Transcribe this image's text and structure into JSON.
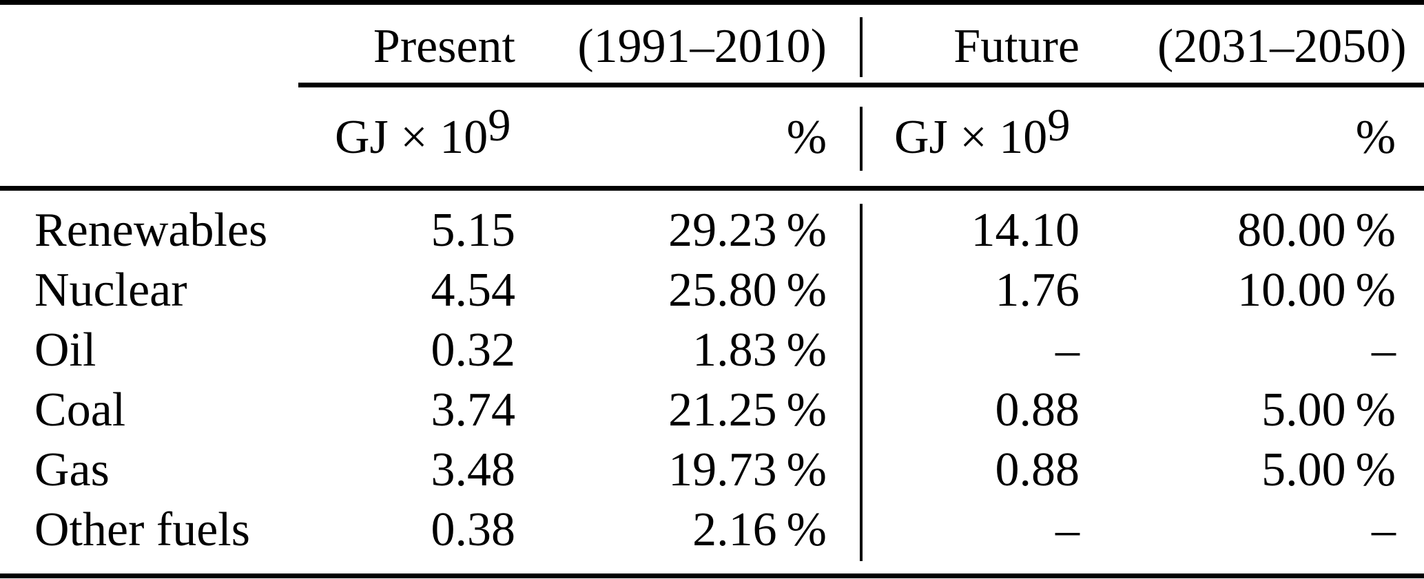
{
  "table": {
    "column_groups": [
      {
        "label": "Present",
        "range": "(1991–2010)"
      },
      {
        "label": "Future",
        "range": "(2031–2050)"
      }
    ],
    "units": {
      "gj_base": "GJ × 10",
      "gj_exp": "9",
      "percent": "%"
    },
    "rows": [
      {
        "label": "Renewables",
        "present_gj": "5.15",
        "present_pct": "29.23 %",
        "future_gj": "14.10",
        "future_pct": "80.00 %"
      },
      {
        "label": "Nuclear",
        "present_gj": "4.54",
        "present_pct": "25.80 %",
        "future_gj": "1.76",
        "future_pct": "10.00 %"
      },
      {
        "label": "Oil",
        "present_gj": "0.32",
        "present_pct": "1.83 %",
        "future_gj": "–",
        "future_pct": "–"
      },
      {
        "label": "Coal",
        "present_gj": "3.74",
        "present_pct": "21.25 %",
        "future_gj": "0.88",
        "future_pct": "5.00 %"
      },
      {
        "label": "Gas",
        "present_gj": "3.48",
        "present_pct": "19.73 %",
        "future_gj": "0.88",
        "future_pct": "5.00 %"
      },
      {
        "label": "Other fuels",
        "present_gj": "0.38",
        "present_pct": "2.16 %",
        "future_gj": "–",
        "future_pct": "–"
      }
    ],
    "rule_color": "#000000",
    "background_color": "#ffffff",
    "text_color": "#000000"
  },
  "chart_data": {
    "type": "table",
    "title": "",
    "columns": [
      "",
      "Present GJ × 10^9",
      "Present %",
      "Future GJ × 10^9",
      "Future %"
    ],
    "rows": [
      [
        "Renewables",
        5.15,
        29.23,
        14.1,
        80.0
      ],
      [
        "Nuclear",
        4.54,
        25.8,
        1.76,
        10.0
      ],
      [
        "Oil",
        0.32,
        1.83,
        null,
        null
      ],
      [
        "Coal",
        3.74,
        21.25,
        0.88,
        5.0
      ],
      [
        "Gas",
        3.48,
        19.73,
        0.88,
        5.0
      ],
      [
        "Other fuels",
        0.38,
        2.16,
        null,
        null
      ]
    ]
  }
}
